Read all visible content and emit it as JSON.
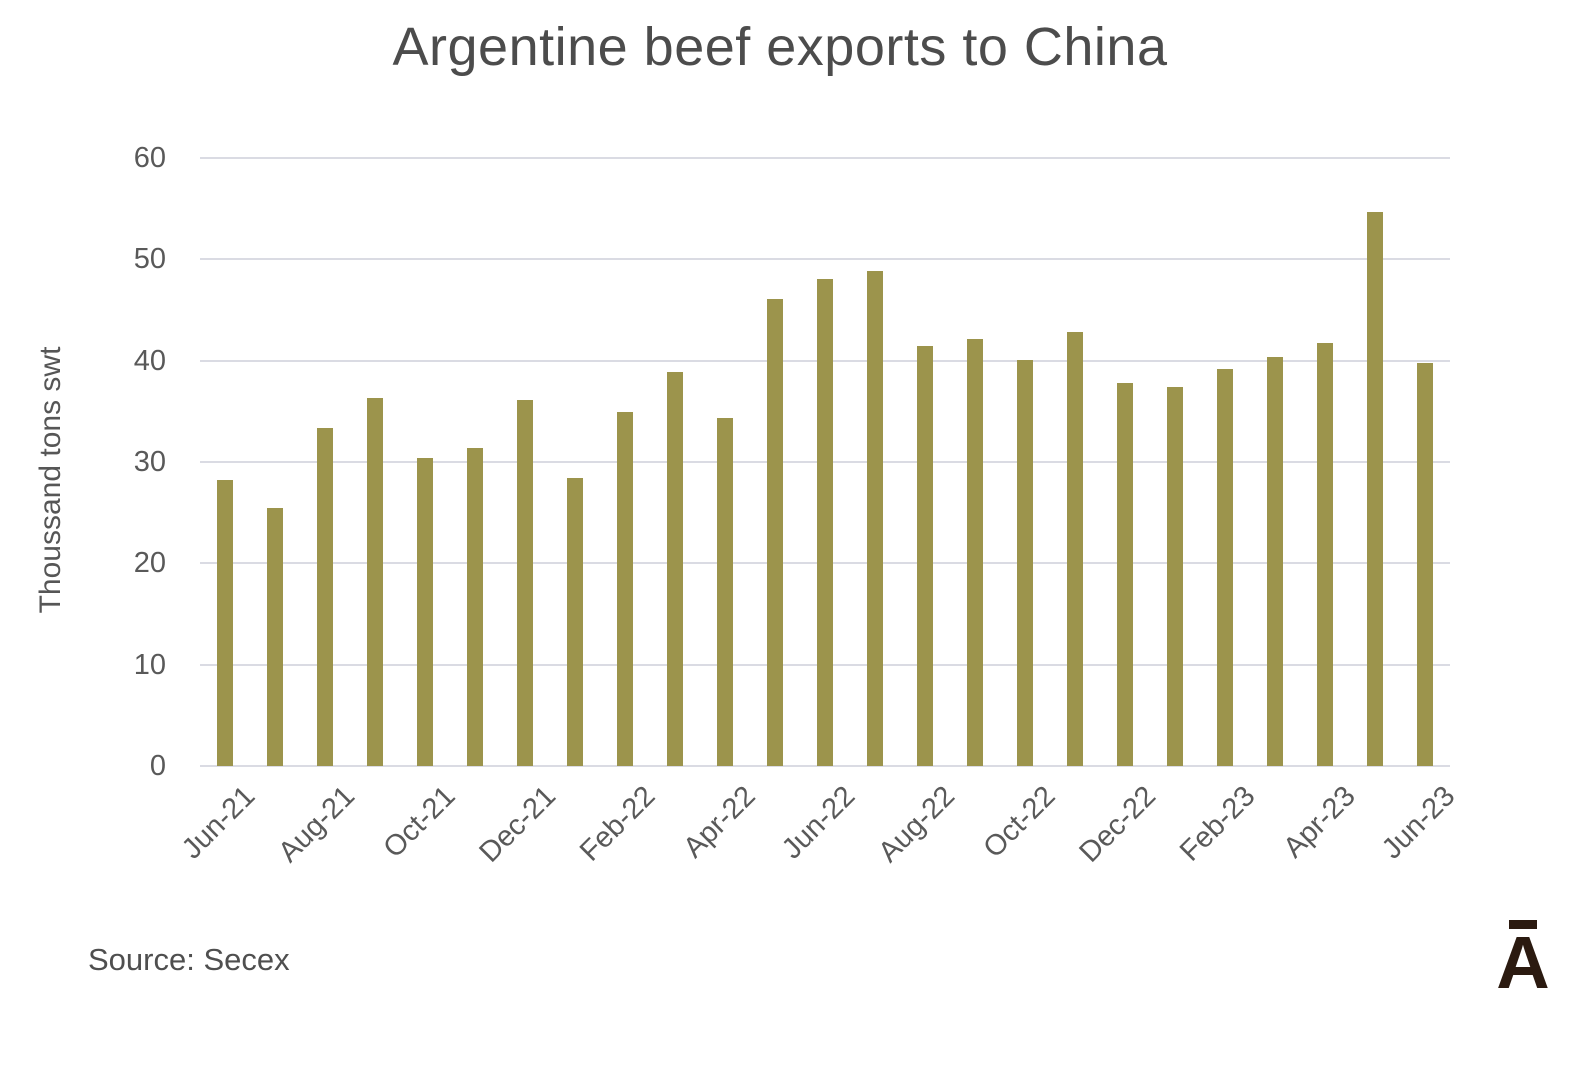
{
  "title": "Argentine beef exports to China",
  "source": "Source: Secex",
  "logo": {
    "letter": "A"
  },
  "colors": {
    "bar": "#9c944c",
    "gridline": "#dadbe3",
    "title_text": "#4c4c4c",
    "tick_text": "#595959",
    "logo": "#2b1a10"
  },
  "y_axis": {
    "label": "Thoussand tons swt",
    "ticks": [
      60,
      50,
      40,
      30,
      20,
      10,
      0
    ]
  },
  "x_axis": {
    "tick_labels": [
      "Jun-21",
      "Aug-21",
      "Oct-21",
      "Dec-21",
      "Feb-22",
      "Apr-22",
      "Jun-22",
      "Aug-22",
      "Oct-22",
      "Dec-22",
      "Feb-23",
      "Apr-23",
      "Jun-23"
    ]
  },
  "chart_data": {
    "type": "bar",
    "title": "Argentine beef exports to China",
    "xlabel": "",
    "ylabel": "Thoussand tons swt",
    "ylim": [
      0,
      60
    ],
    "grid": true,
    "legend": false,
    "bar_color": "#9c944c",
    "categories": [
      "Jun-21",
      "Jul-21",
      "Aug-21",
      "Sep-21",
      "Oct-21",
      "Nov-21",
      "Dec-21",
      "Jan-22",
      "Feb-22",
      "Mar-22",
      "Apr-22",
      "May-22",
      "Jun-22",
      "Jul-22",
      "Aug-22",
      "Sep-22",
      "Oct-22",
      "Nov-22",
      "Dec-22",
      "Jan-23",
      "Feb-23",
      "Mar-23",
      "Apr-23",
      "May-23",
      "Jun-23"
    ],
    "values": [
      28.2,
      25.5,
      33.4,
      36.3,
      30.4,
      31.4,
      36.1,
      28.4,
      34.9,
      38.9,
      34.3,
      46.1,
      48.1,
      48.8,
      41.4,
      42.1,
      40.1,
      42.8,
      37.8,
      37.4,
      39.2,
      40.4,
      41.7,
      54.7,
      39.8
    ],
    "x_tick_labels": [
      "Jun-21",
      "Aug-21",
      "Oct-21",
      "Dec-21",
      "Feb-22",
      "Apr-22",
      "Jun-22",
      "Aug-22",
      "Oct-22",
      "Dec-22",
      "Feb-23",
      "Apr-23",
      "Jun-23"
    ],
    "source": "Source: Secex"
  }
}
